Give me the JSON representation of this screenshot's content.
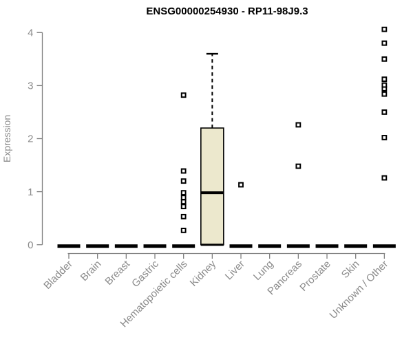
{
  "chart_data": {
    "type": "boxplot",
    "title": "ENSG00000254930 - RP11-98J9.3",
    "ylabel": "Expression",
    "xlabel": "",
    "ylim": [
      0,
      4
    ],
    "yticks": [
      0,
      1,
      2,
      3,
      4
    ],
    "grid": false,
    "legend": "none",
    "categories": [
      "Bladder",
      "Brain",
      "Breast",
      "Gastric",
      "Hematopoietic cells",
      "Kidney",
      "Liver",
      "Lung",
      "Pancreas",
      "Prostate",
      "Skin",
      "Unknown / Other"
    ],
    "boxes": [
      {
        "category": "Bladder",
        "min": 0,
        "q1": 0,
        "median": 0,
        "q3": 0,
        "max": 0,
        "outliers": []
      },
      {
        "category": "Brain",
        "min": 0,
        "q1": 0,
        "median": 0,
        "q3": 0,
        "max": 0,
        "outliers": []
      },
      {
        "category": "Breast",
        "min": 0,
        "q1": 0,
        "median": 0,
        "q3": 0,
        "max": 0,
        "outliers": []
      },
      {
        "category": "Gastric",
        "min": 0,
        "q1": 0,
        "median": 0,
        "q3": 0,
        "max": 0,
        "outliers": []
      },
      {
        "category": "Hematopoietic cells",
        "min": 0,
        "q1": 0,
        "median": 0,
        "q3": 0,
        "max": 0,
        "outliers": [
          0.27,
          0.53,
          0.72,
          0.81,
          0.89,
          0.98,
          1.2,
          1.39,
          2.82
        ]
      },
      {
        "category": "Kidney",
        "min": 0,
        "q1": 0,
        "median": 0.98,
        "q3": 2.2,
        "max": 3.6,
        "outliers": []
      },
      {
        "category": "Liver",
        "min": 0,
        "q1": 0,
        "median": 0,
        "q3": 0,
        "max": 0,
        "outliers": [
          1.13
        ]
      },
      {
        "category": "Lung",
        "min": 0,
        "q1": 0,
        "median": 0,
        "q3": 0,
        "max": 0,
        "outliers": []
      },
      {
        "category": "Pancreas",
        "min": 0,
        "q1": 0,
        "median": 0,
        "q3": 0,
        "max": 0,
        "outliers": [
          1.48,
          2.26
        ]
      },
      {
        "category": "Prostate",
        "min": 0,
        "q1": 0,
        "median": 0,
        "q3": 0,
        "max": 0,
        "outliers": []
      },
      {
        "category": "Skin",
        "min": 0,
        "q1": 0,
        "median": 0,
        "q3": 0,
        "max": 0,
        "outliers": []
      },
      {
        "category": "Unknown / Other",
        "min": 0,
        "q1": 0,
        "median": 0,
        "q3": 0,
        "max": 0,
        "outliers": [
          1.26,
          2.02,
          2.5,
          2.84,
          2.94,
          3.01,
          3.12,
          3.5,
          3.8,
          4.06
        ]
      }
    ],
    "colors": {
      "background": "#ffffff",
      "box_fill": "#ece8cd",
      "box_border": "#000000",
      "median": "#000000",
      "outlier": "#000000",
      "axis": "#7f7f7f",
      "tick_text": "#8a8a8a",
      "title_text": "#000000"
    }
  }
}
